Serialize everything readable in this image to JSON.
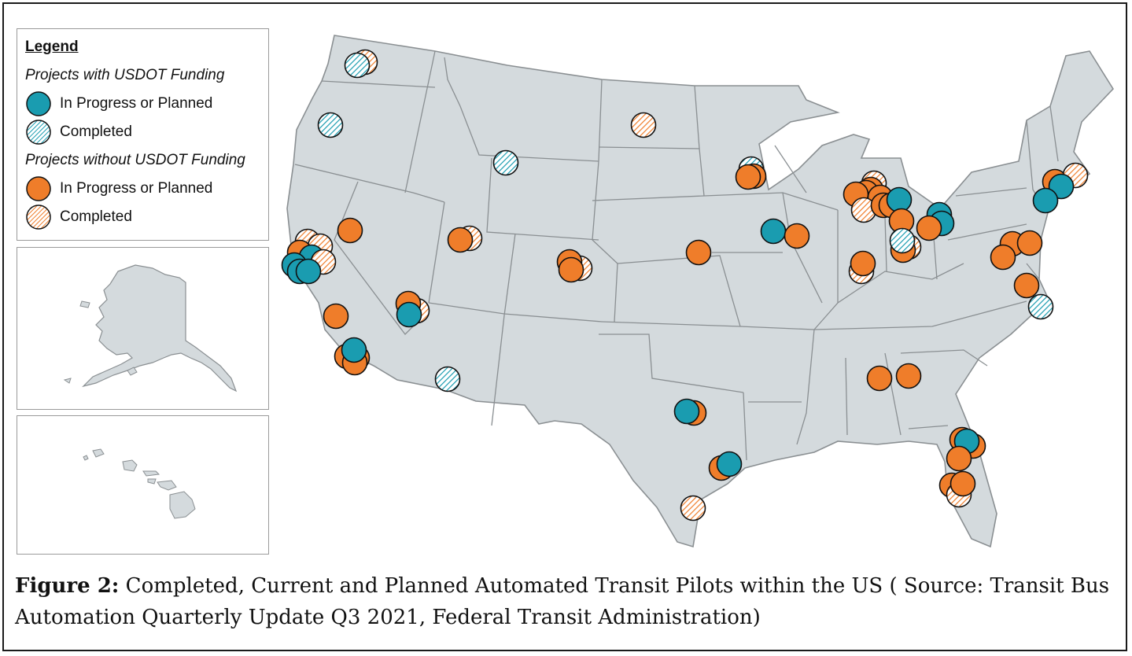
{
  "legend": {
    "title": "Legend",
    "group_with_funding": "Projects with USDOT Funding",
    "group_without_funding": "Projects without USDOT Funding",
    "items": [
      {
        "label": "In Progress or Planned",
        "funding": "usdot",
        "status": "in-progress"
      },
      {
        "label": "Completed",
        "funding": "usdot",
        "status": "completed"
      },
      {
        "label": "In Progress or Planned",
        "funding": "non-usdot",
        "status": "in-progress"
      },
      {
        "label": "Completed",
        "funding": "non-usdot",
        "status": "completed"
      }
    ]
  },
  "colors": {
    "usdot": "#1a9cb0",
    "non_usdot": "#ef7d2a",
    "usdot_completed_hatch": "#1a9cb0",
    "non_usdot_completed_hatch": "#ef7d2a",
    "land": "#d4dadd",
    "border": "#8a8f92"
  },
  "caption": {
    "label": "Figure 2:",
    "text": " Completed, Current and Planned Automated Transit Pilots within the US ( Source: Transit Bus Automation Quarterly Update Q3 2021, Federal Transit Administration)"
  },
  "insets": [
    "alaska",
    "hawaii"
  ]
}
